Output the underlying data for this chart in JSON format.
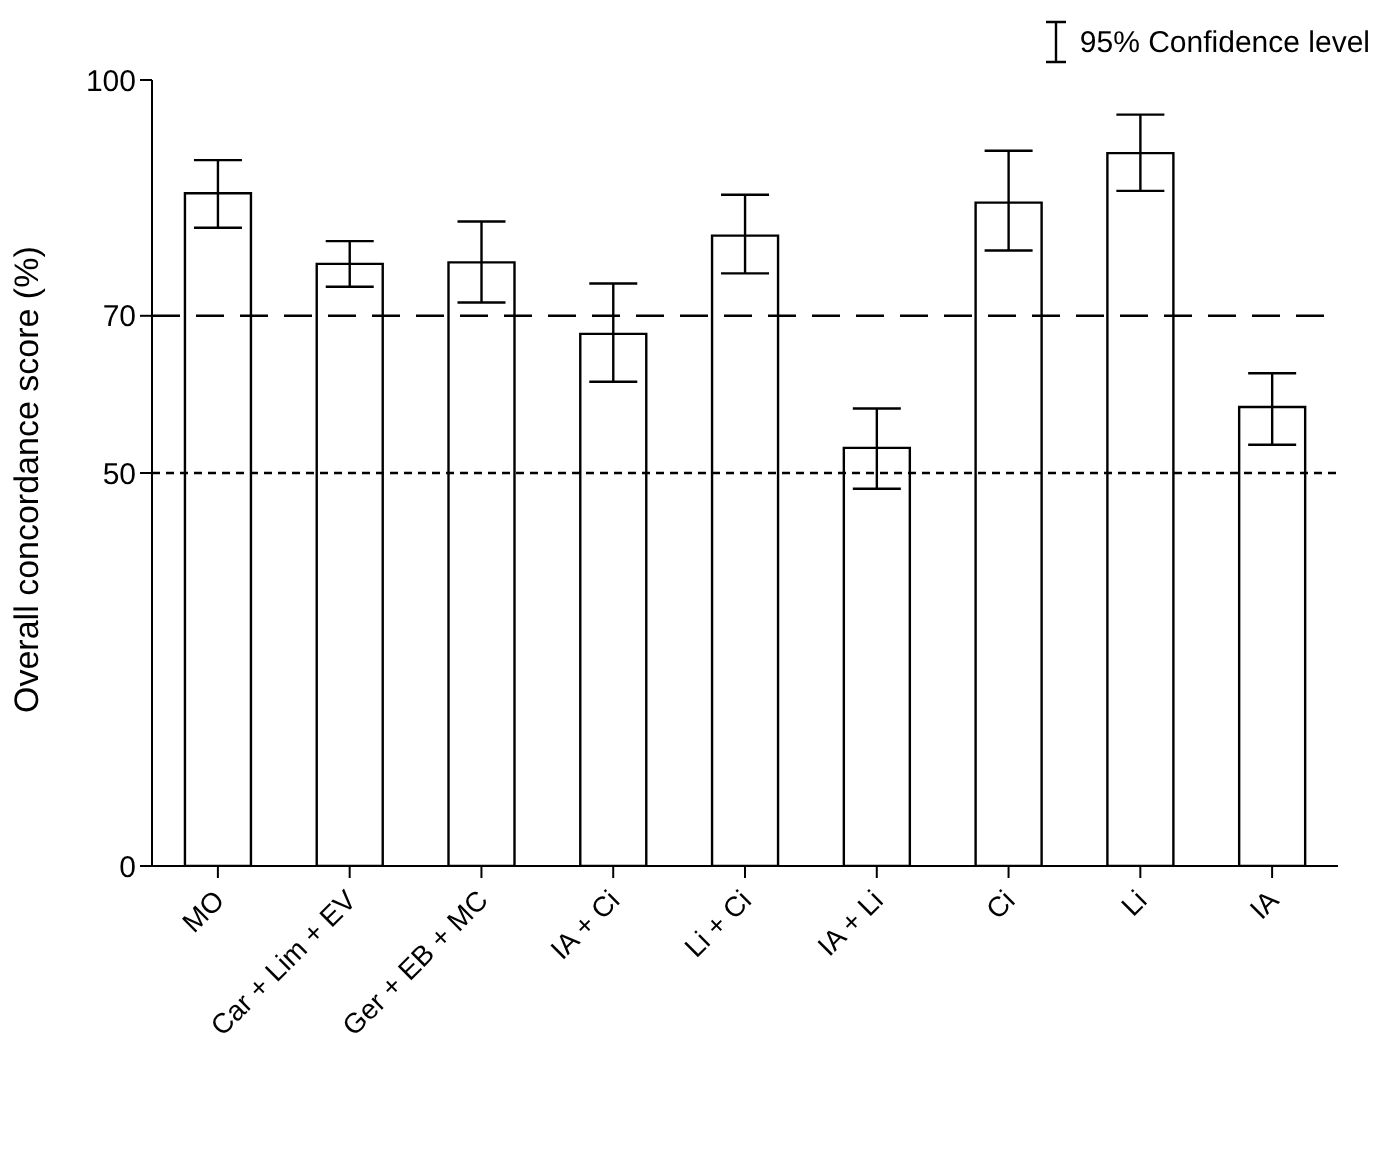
{
  "chart_data": {
    "type": "bar",
    "ylabel": "Overall concordance score (%)",
    "categories": [
      "MO",
      "Car + Lim + EV",
      "Ger + EB + MC",
      "IA + Ci",
      "Li + Ci",
      "IA + Li",
      "Ci",
      "Li",
      "IA"
    ],
    "values": [
      85.6,
      76.6,
      76.8,
      67.7,
      80.2,
      53.2,
      84.4,
      90.7,
      58.4
    ],
    "errors": [
      [
        81.2,
        89.8
      ],
      [
        73.7,
        79.5
      ],
      [
        71.7,
        82
      ],
      [
        61.6,
        74.1
      ],
      [
        75.4,
        85.4
      ],
      [
        48,
        58.2
      ],
      [
        78.3,
        91
      ],
      [
        85.9,
        95.6
      ],
      [
        53.6,
        62.7
      ]
    ],
    "color": "#ffffff",
    "ylim": [
      0,
      100
    ],
    "yticks": [
      0,
      50,
      70,
      100
    ],
    "grid": false,
    "legend": false,
    "ref_lines": [
      {
        "axis": "y",
        "value": 70,
        "line_style": "dashed",
        "color": "#000000"
      },
      {
        "axis": "y",
        "value": 50,
        "line_style": "dotted",
        "color": "#000000"
      }
    ],
    "annotations": [
      "95% Confidence level"
    ]
  }
}
